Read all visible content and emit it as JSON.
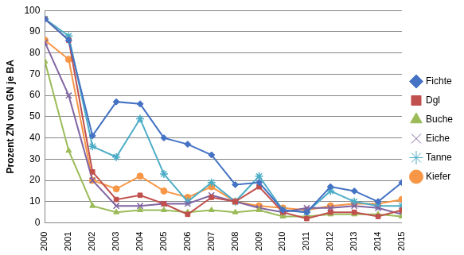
{
  "chart_data": {
    "type": "line",
    "y_label": "Prozent ZN von GN je BA",
    "categories": [
      "2000",
      "2001",
      "2002",
      "2003",
      "2004",
      "2005",
      "2006",
      "2007",
      "2008",
      "2009",
      "2010",
      "2011",
      "2012",
      "2013",
      "2014",
      "2015"
    ],
    "series": [
      {
        "name": "Fichte",
        "color": "#4472c4",
        "marker": "diamond",
        "values": [
          96,
          86,
          41,
          57,
          56,
          40,
          37,
          32,
          18,
          19,
          6,
          5,
          17,
          15,
          10,
          19
        ]
      },
      {
        "name": "Dgl",
        "color": "#c0504d",
        "marker": "square",
        "values": [
          96,
          86,
          24,
          11,
          13,
          9,
          4,
          12,
          10,
          17,
          5,
          2,
          5,
          5,
          3,
          6
        ]
      },
      {
        "name": "Buche",
        "color": "#9bbb59",
        "marker": "triangle",
        "values": [
          76,
          34,
          8,
          5,
          6,
          6,
          5,
          6,
          5,
          6,
          3,
          3,
          4,
          4,
          4,
          3
        ]
      },
      {
        "name": "Eiche",
        "color": "#8064a2",
        "marker": "x",
        "values": [
          85,
          60,
          20,
          8,
          8,
          9,
          9,
          13,
          10,
          7,
          5,
          7,
          7,
          8,
          7,
          4
        ]
      },
      {
        "name": "Tanne",
        "color": "#4bacc6",
        "marker": "star",
        "values": [
          96,
          88,
          36,
          31,
          49,
          23,
          10,
          19,
          10,
          22,
          6,
          5,
          15,
          10,
          8,
          8
        ]
      },
      {
        "name": "Kiefer",
        "color": "#f79646",
        "marker": "circle",
        "values": [
          86,
          77,
          20,
          16,
          22,
          15,
          12,
          17,
          10,
          8,
          7,
          6,
          8,
          9,
          9,
          11
        ]
      }
    ],
    "ylim": [
      0,
      100
    ],
    "yticks": [
      0,
      10,
      20,
      30,
      40,
      50,
      60,
      70,
      80,
      90,
      100
    ],
    "grid": true,
    "legend": "right"
  }
}
